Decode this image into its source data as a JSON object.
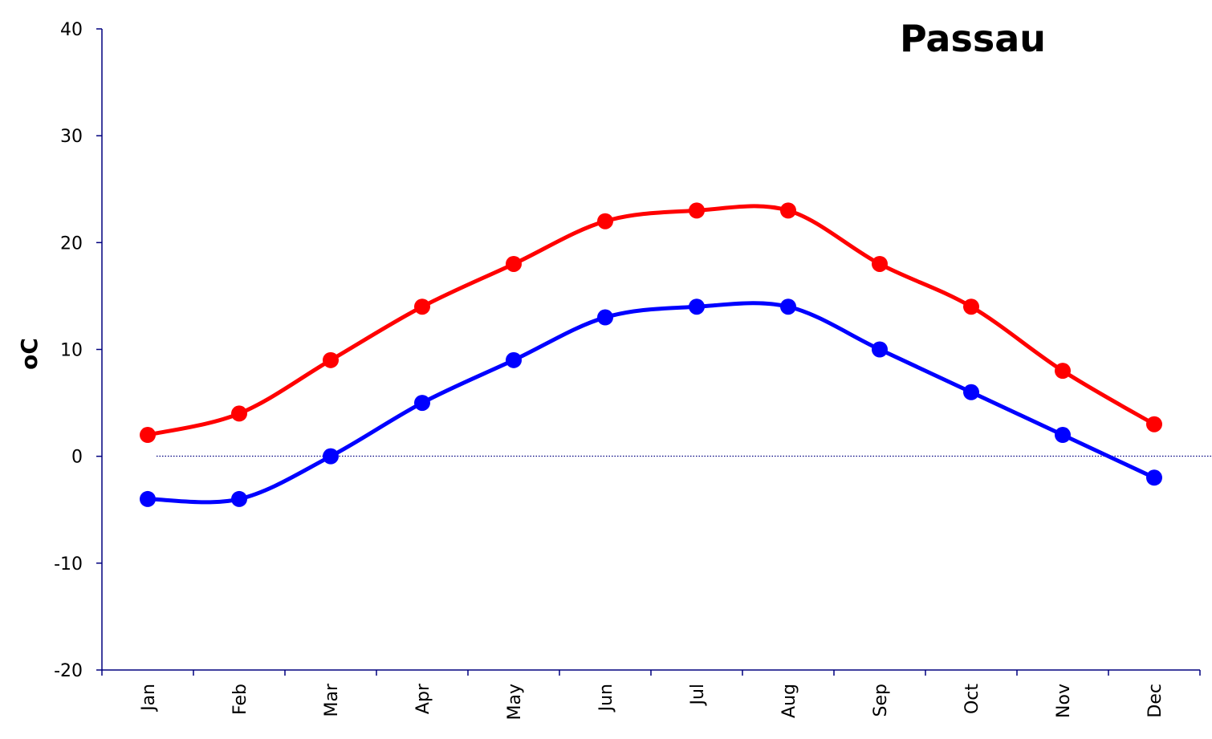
{
  "chart_data": {
    "type": "line",
    "title": "Passau",
    "ylabel": "oC",
    "xlabel": "",
    "categories": [
      "Jan",
      "Feb",
      "Mar",
      "Apr",
      "May",
      "Jun",
      "Jul",
      "Aug",
      "Sep",
      "Oct",
      "Nov",
      "Dec"
    ],
    "ylim": [
      -20,
      40
    ],
    "yticks": [
      -20,
      -10,
      0,
      10,
      20,
      30,
      40
    ],
    "grid": false,
    "zero_line": true,
    "series": [
      {
        "color": "#ff0000",
        "values": [
          2,
          4,
          9,
          14,
          18,
          22,
          23,
          23,
          18,
          14,
          8,
          3
        ]
      },
      {
        "color": "#0000ff",
        "values": [
          -4,
          -4,
          0,
          5,
          9,
          13,
          14,
          14,
          10,
          6,
          2,
          -2
        ]
      }
    ]
  }
}
